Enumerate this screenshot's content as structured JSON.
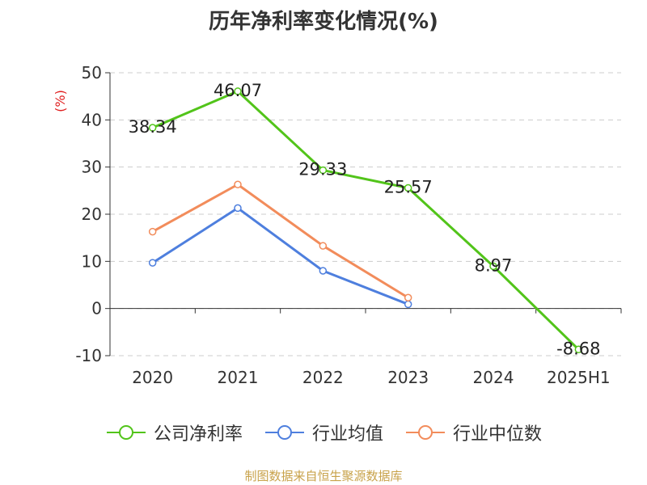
{
  "chart_data": {
    "type": "line",
    "title": "历年净利率变化情况(%)",
    "ylabel": "(%)",
    "xlabel": "",
    "categories": [
      "2020",
      "2021",
      "2022",
      "2023",
      "2024",
      "2025H1"
    ],
    "ylim": [
      -10,
      50
    ],
    "yticks": [
      -10,
      0,
      10,
      20,
      30,
      40,
      50
    ],
    "grid": true,
    "legend_position": "bottom",
    "series": [
      {
        "name": "公司净利率",
        "color": "#52c41a",
        "show_labels": true,
        "values": [
          38.34,
          46.07,
          29.33,
          25.57,
          8.97,
          -8.68
        ]
      },
      {
        "name": "行业均值",
        "color": "#4e7fde",
        "show_labels": false,
        "values": [
          9.7,
          21.3,
          8.0,
          0.9,
          null,
          null
        ]
      },
      {
        "name": "行业中位数",
        "color": "#f28c5b",
        "show_labels": false,
        "values": [
          16.3,
          26.3,
          13.3,
          2.3,
          null,
          null
        ]
      }
    ]
  },
  "footer": {
    "source": "制图数据来自恒生聚源数据库"
  }
}
